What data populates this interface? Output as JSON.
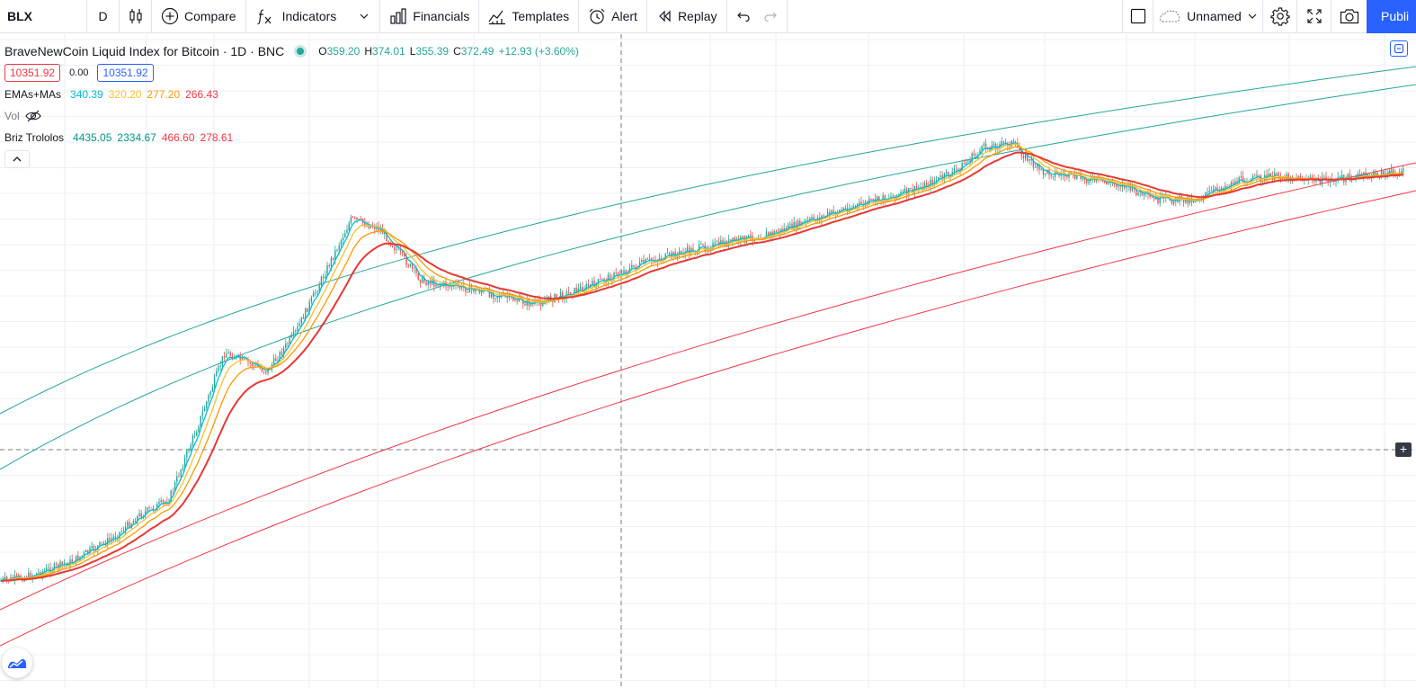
{
  "toolbar": {
    "symbol": "BLX",
    "interval": "D",
    "compare_label": "Compare",
    "indicators_label": "Indicators",
    "financials_label": "Financials",
    "templates_label": "Templates",
    "alert_label": "Alert",
    "replay_label": "Replay",
    "layout_name": "Unnamed",
    "publish_label": "Publi"
  },
  "legend": {
    "title": "BraveNewCoin Liquid Index for Bitcoin",
    "interval": "1D",
    "exchange": "BNC",
    "ohlc": {
      "o_label": "O",
      "o": "359.20",
      "h_label": "H",
      "h": "374.01",
      "l_label": "L",
      "l": "355.39",
      "c_label": "C",
      "c": "372.49",
      "change": "+12.93 (+3.60%)"
    },
    "sell_price": "10351.92",
    "spread": "0.00",
    "buy_price": "10351.92",
    "indicators": [
      {
        "name": "EMAs+MAs",
        "values": [
          "340.39",
          "320.20",
          "277.20",
          "266.43"
        ],
        "colors": [
          "#00bcd4",
          "#fbc02d",
          "#ff9800",
          "#f23645"
        ]
      },
      {
        "name": "Briz Trololos",
        "values": [
          "4435.05",
          "2334.67",
          "466.60",
          "278.61"
        ],
        "colors": [
          "#009688",
          "#009688",
          "#f23645",
          "#f23645"
        ]
      }
    ],
    "volume_label": "Vol"
  },
  "icons": {
    "candles": "candlestick-icon",
    "compare": "plus-circle-icon",
    "indicators": "fx-icon",
    "financials": "bar-chart-icon",
    "templates": "templates-icon",
    "alert": "alarm-clock-icon",
    "replay": "rewind-icon",
    "undo": "undo-icon",
    "redo": "redo-icon",
    "fullscreen_box": "square-icon",
    "cloud": "cloud-icon",
    "settings": "gear-icon",
    "expand": "fullscreen-icon",
    "snapshot": "camera-icon",
    "volume_hidden": "eye-off-icon"
  },
  "colors": {
    "teal_channel": "#26a69a",
    "red_channel": "#f23645",
    "ema_fast": "#00bcd4",
    "ema_mid": "#fbc02d",
    "ema_slow": "#ff9800",
    "ma_long": "#e53935",
    "candle_up": "#26a69a",
    "candle_down": "#ef5350",
    "accent": "#2962ff"
  },
  "chart_data": {
    "type": "line",
    "log_scale": true,
    "grid": true,
    "series": [
      {
        "x": [
          0,
          0.02,
          0.05,
          0.08,
          0.1,
          0.12,
          0.14,
          0.16,
          0.19,
          0.21,
          0.23,
          0.25,
          0.27,
          0.3,
          0.34,
          0.38,
          0.42,
          0.46,
          0.5,
          0.55,
          0.6,
          0.65,
          0.68,
          0.7,
          0.72,
          0.74,
          0.76,
          0.78,
          0.8,
          0.82,
          0.85,
          0.88,
          0.91,
          0.94,
          0.97,
          1
        ],
        "y": [
          0.06,
          0.07,
          0.1,
          0.15,
          0.2,
          0.23,
          0.38,
          0.54,
          0.5,
          0.58,
          0.7,
          0.82,
          0.8,
          0.69,
          0.67,
          0.64,
          0.68,
          0.73,
          0.76,
          0.79,
          0.84,
          0.88,
          0.92,
          0.97,
          0.98,
          0.92,
          0.91,
          0.9,
          0.89,
          0.86,
          0.86,
          0.9,
          0.91,
          0.9,
          0.91,
          0.92
        ]
      }
    ]
  }
}
